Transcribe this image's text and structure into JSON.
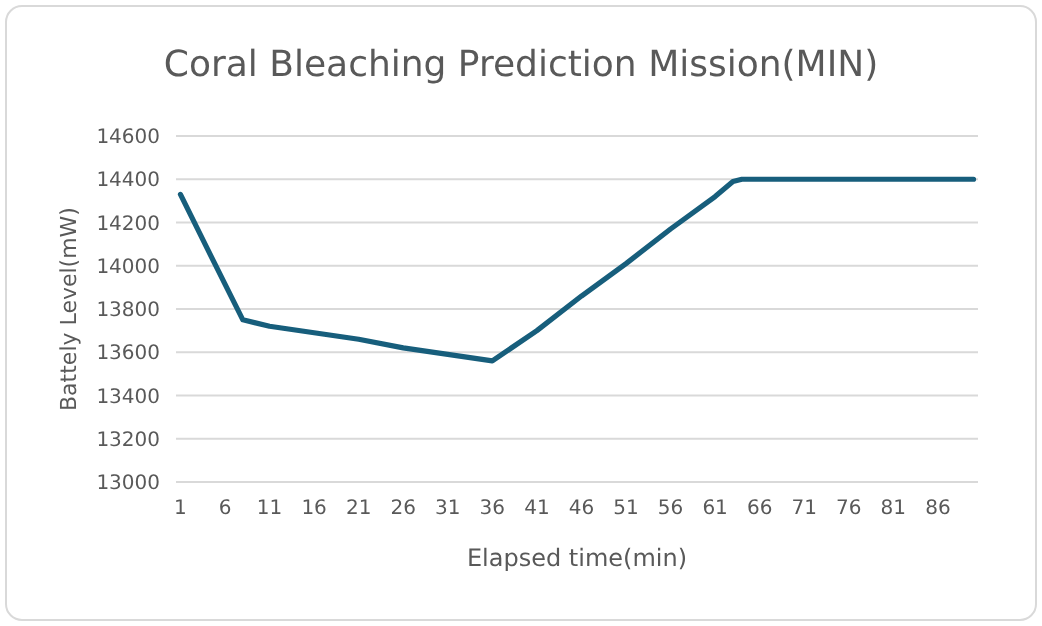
{
  "chart_data": {
    "type": "line",
    "title": "Coral Bleaching Prediction Mission(MIN)",
    "xlabel": "Elapsed time(min)",
    "ylabel": "Battely Level(mW)",
    "x": [
      1,
      4,
      8,
      11,
      16,
      21,
      26,
      31,
      36,
      41,
      46,
      51,
      56,
      61,
      63,
      64,
      90
    ],
    "series": [
      {
        "color": "#175e7c",
        "values": [
          14330,
          14080,
          13750,
          13720,
          13690,
          13660,
          13620,
          13590,
          13560,
          13700,
          13860,
          14010,
          14170,
          14320,
          14390,
          14400,
          14400
        ]
      }
    ],
    "xlim": [
      0.5,
      90.5
    ],
    "xticks": [
      1,
      6,
      11,
      16,
      21,
      26,
      31,
      36,
      41,
      46,
      51,
      56,
      61,
      66,
      71,
      76,
      81,
      86
    ],
    "ylim": [
      13000,
      14600
    ],
    "yticks": [
      13000,
      13200,
      13400,
      13600,
      13800,
      14000,
      14200,
      14400,
      14600
    ],
    "grid": "y",
    "marker": "none",
    "line_style": "solid"
  }
}
